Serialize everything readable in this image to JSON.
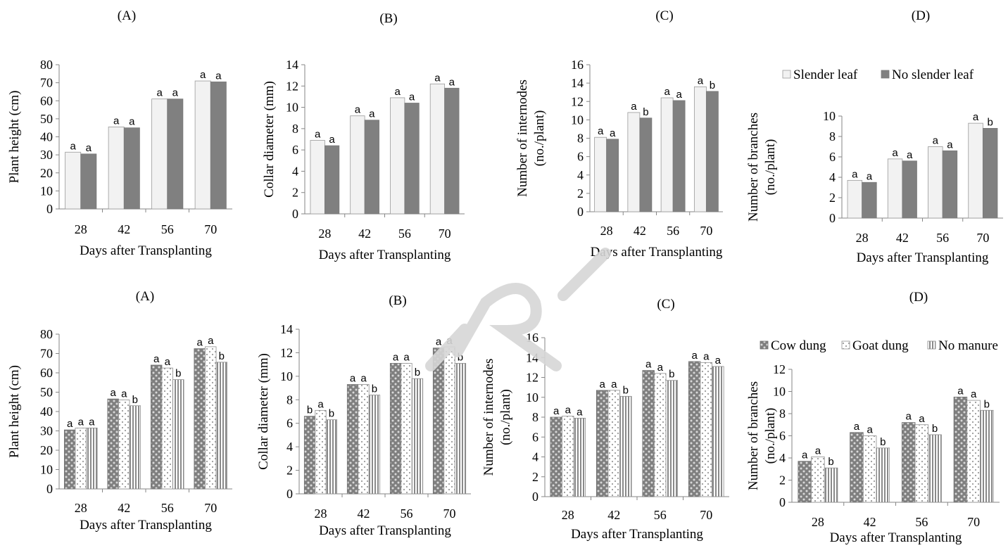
{
  "colors": {
    "slender": "#f2f2f2",
    "no_slender": "#808080",
    "cow_dung_bg": "#7f7f7f",
    "cow_dung_dot": "#d9d9d9",
    "goat_dung_bg": "#ffffff",
    "goat_dung_dot": "#9a9a9a",
    "no_manure_bg": "#ffffff",
    "no_manure_stripe": "#8a8a8a",
    "axis": "#868686",
    "watermark": "#d6d6d6"
  },
  "chart_data": [
    {
      "type": "bar",
      "panel": "(A)",
      "categories": [
        "28",
        "42",
        "56",
        "70"
      ],
      "xlabel": "Days after Transplanting",
      "ylabel": "Plant height (cm)",
      "ylim": [
        0,
        80
      ],
      "yticks": [
        "0",
        "10",
        "20",
        "30",
        "40",
        "50",
        "60",
        "70",
        "80"
      ],
      "legend": "none",
      "series": [
        {
          "key": "slender",
          "values": [
            31.5,
            45.5,
            61,
            71
          ],
          "labels": [
            "a",
            "a",
            "a",
            "a"
          ]
        },
        {
          "key": "no_slender",
          "values": [
            30.5,
            45,
            61,
            70.5
          ],
          "labels": [
            "a",
            "a",
            "a",
            "a"
          ]
        }
      ]
    },
    {
      "type": "bar",
      "panel": "(B)",
      "categories": [
        "28",
        "42",
        "56",
        "70"
      ],
      "xlabel": "Days after Transplanting",
      "ylabel": "Collar diameter (mm)",
      "ylim": [
        0,
        14
      ],
      "yticks": [
        "0",
        "2",
        "4",
        "6",
        "8",
        "10",
        "12",
        "14"
      ],
      "legend": "none",
      "series": [
        {
          "key": "slender",
          "values": [
            6.9,
            9.2,
            10.9,
            12.2
          ],
          "labels": [
            "a",
            "a",
            "a",
            "a"
          ]
        },
        {
          "key": "no_slender",
          "values": [
            6.4,
            8.8,
            10.4,
            11.8
          ],
          "labels": [
            "a",
            "a",
            "a",
            "a"
          ]
        }
      ]
    },
    {
      "type": "bar",
      "panel": "(C)",
      "categories": [
        "28",
        "42",
        "56",
        "70"
      ],
      "xlabel": "Days after Transplanting",
      "ylabel": [
        "Number of internodes",
        "(no./plant)"
      ],
      "ylim": [
        0,
        16
      ],
      "yticks": [
        "0",
        "2",
        "4",
        "6",
        "8",
        "10",
        "12",
        "14",
        "16"
      ],
      "legend": "none",
      "series": [
        {
          "key": "slender",
          "values": [
            8.1,
            10.8,
            12.4,
            13.6
          ],
          "labels": [
            "a",
            "a",
            "a",
            "a"
          ]
        },
        {
          "key": "no_slender",
          "values": [
            7.9,
            10.2,
            12.1,
            13.1
          ],
          "labels": [
            "a",
            "b",
            "a",
            "b"
          ]
        }
      ]
    },
    {
      "type": "bar",
      "panel": "(D)",
      "categories": [
        "28",
        "42",
        "56",
        "70"
      ],
      "xlabel": "Days after Transplanting",
      "ylabel": [
        "Number of branches",
        "(no./plant)"
      ],
      "ylim": [
        0,
        10
      ],
      "yticks": [
        "0",
        "2",
        "4",
        "6",
        "8",
        "10"
      ],
      "legend": "top",
      "series": [
        {
          "key": "slender",
          "name": "Slender leaf",
          "values": [
            3.7,
            5.8,
            7.0,
            9.3
          ],
          "labels": [
            "a",
            "a",
            "a",
            "a"
          ]
        },
        {
          "key": "no_slender",
          "name": "No slender leaf",
          "values": [
            3.5,
            5.6,
            6.6,
            8.8
          ],
          "labels": [
            "a",
            "a",
            "a",
            "b"
          ]
        }
      ]
    },
    {
      "type": "bar",
      "panel": "(A)",
      "categories": [
        "28",
        "42",
        "56",
        "70"
      ],
      "xlabel": "Days after Transplanting",
      "ylabel": "Plant height (cm)",
      "ylim": [
        0,
        80
      ],
      "yticks": [
        "0",
        "10",
        "20",
        "30",
        "40",
        "50",
        "60",
        "70",
        "80"
      ],
      "legend": "none",
      "series": [
        {
          "key": "cow",
          "values": [
            30.5,
            46.5,
            64,
            72.5
          ],
          "labels": [
            "a",
            "a",
            "a",
            "a"
          ]
        },
        {
          "key": "goat",
          "values": [
            31.5,
            46,
            62.5,
            73.5
          ],
          "labels": [
            "a",
            "a",
            "a",
            "a"
          ]
        },
        {
          "key": "none",
          "values": [
            31.5,
            43,
            56.5,
            65.5
          ],
          "labels": [
            "a",
            "b",
            "b",
            "b"
          ]
        }
      ]
    },
    {
      "type": "bar",
      "panel": "(B)",
      "categories": [
        "28",
        "42",
        "56",
        "70"
      ],
      "xlabel": "Days after Transplanting",
      "ylabel": "Collar diameter (mm)",
      "ylim": [
        0,
        14
      ],
      "yticks": [
        "0",
        "2",
        "4",
        "6",
        "8",
        "10",
        "12",
        "14"
      ],
      "legend": "none",
      "series": [
        {
          "key": "cow",
          "values": [
            6.6,
            9.3,
            11.1,
            12.4
          ],
          "labels": [
            "b",
            "a",
            "a",
            "a"
          ]
        },
        {
          "key": "goat",
          "values": [
            7.1,
            9.3,
            11.1,
            12.5
          ],
          "labels": [
            "a",
            "a",
            "a",
            "a"
          ]
        },
        {
          "key": "none",
          "values": [
            6.3,
            8.4,
            9.8,
            11.1
          ],
          "labels": [
            "b",
            "b",
            "b",
            "b"
          ]
        }
      ]
    },
    {
      "type": "bar",
      "panel": "(C)",
      "categories": [
        "28",
        "42",
        "56",
        "70"
      ],
      "xlabel": "Days after Transplanting",
      "ylabel": [
        "Number of internodes",
        "(no./plant)"
      ],
      "ylim": [
        0,
        16
      ],
      "yticks": [
        "0",
        "2",
        "4",
        "6",
        "8",
        "10",
        "12",
        "14",
        "16"
      ],
      "legend": "none",
      "series": [
        {
          "key": "cow",
          "values": [
            8.0,
            10.7,
            12.7,
            13.6
          ],
          "labels": [
            "a",
            "a",
            "a",
            "a"
          ]
        },
        {
          "key": "goat",
          "values": [
            8.1,
            10.7,
            12.4,
            13.5
          ],
          "labels": [
            "a",
            "a",
            "a",
            "a"
          ]
        },
        {
          "key": "none",
          "values": [
            7.9,
            10.1,
            11.7,
            13.1
          ],
          "labels": [
            "a",
            "b",
            "b",
            "a"
          ]
        }
      ]
    },
    {
      "type": "bar",
      "panel": "(D)",
      "categories": [
        "28",
        "42",
        "56",
        "70"
      ],
      "xlabel": "Days after Transplanting",
      "ylabel": [
        "Number of branches",
        "(no./plant)"
      ],
      "ylim": [
        0,
        12
      ],
      "yticks": [
        "0",
        "2",
        "4",
        "6",
        "8",
        "10",
        "12"
      ],
      "legend": "top",
      "series": [
        {
          "key": "cow",
          "name": "Cow dung",
          "values": [
            3.7,
            6.3,
            7.2,
            9.5
          ],
          "labels": [
            "a",
            "a",
            "a",
            "a"
          ]
        },
        {
          "key": "goat",
          "name": "Goat dung",
          "values": [
            4.1,
            6.0,
            7.0,
            9.2
          ],
          "labels": [
            "a",
            "a",
            "a",
            "a"
          ]
        },
        {
          "key": "none",
          "name": "No manure",
          "values": [
            3.1,
            4.9,
            6.1,
            8.3
          ],
          "labels": [
            "b",
            "b",
            "b",
            "b"
          ]
        }
      ]
    }
  ]
}
